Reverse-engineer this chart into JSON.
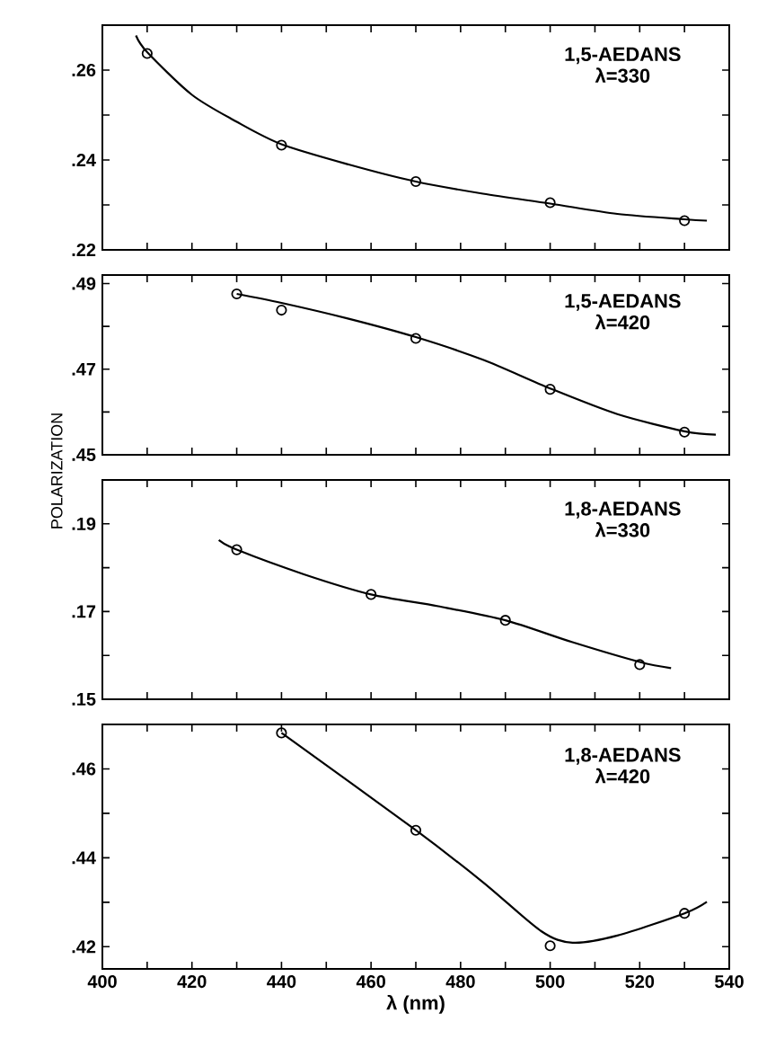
{
  "chart_data": [
    {
      "type": "scatter",
      "marker": "circle",
      "tick_labels": "y",
      "annotations": [
        "1,5-AEDANS",
        "λ=330"
      ],
      "xlim": [
        400,
        540
      ],
      "xticks": [
        400,
        {
          "value": 410,
          "label": null
        },
        420,
        {
          "value": 430,
          "label": null
        },
        440,
        {
          "value": 450,
          "label": null
        },
        460,
        {
          "value": 470,
          "label": null
        },
        480,
        {
          "value": 490,
          "label": null
        },
        500,
        {
          "value": 510,
          "label": null
        },
        520,
        {
          "value": 530,
          "label": null
        },
        540
      ],
      "ylim": [
        0.22,
        0.27
      ],
      "yticks": [
        {
          "value": 0.22,
          "label": ".22"
        },
        {
          "value": 0.23,
          "label": null
        },
        {
          "value": 0.24,
          "label": ".24"
        },
        {
          "value": 0.25,
          "label": null
        },
        {
          "value": 0.26,
          "label": ".26"
        }
      ],
      "series": [
        {
          "color": "#000000",
          "x": [
            410,
            440,
            470,
            500,
            530
          ],
          "values": [
            0.2637,
            0.2433,
            0.2352,
            0.2305,
            0.2265
          ]
        },
        {
          "type": "line",
          "marker": "none",
          "color": "#000000",
          "x": [
            407.5,
            410,
            420,
            430,
            440,
            455,
            470,
            485,
            500,
            515,
            530,
            535
          ],
          "values": [
            0.2677,
            0.264,
            0.2545,
            0.2485,
            0.2435,
            0.239,
            0.2352,
            0.2325,
            0.2303,
            0.228,
            0.2268,
            0.2265
          ]
        }
      ]
    },
    {
      "type": "scatter",
      "marker": "circle",
      "tick_labels": "y",
      "ylabel": "POLARIZATION",
      "annotations": [
        "1,5-AEDANS",
        "λ=420"
      ],
      "xlim": [
        400,
        540
      ],
      "xticks": [
        400,
        {
          "value": 410,
          "label": null
        },
        420,
        {
          "value": 430,
          "label": null
        },
        440,
        {
          "value": 450,
          "label": null
        },
        460,
        {
          "value": 470,
          "label": null
        },
        480,
        {
          "value": 490,
          "label": null
        },
        500,
        {
          "value": 510,
          "label": null
        },
        520,
        {
          "value": 530,
          "label": null
        },
        540
      ],
      "ylim": [
        0.45,
        0.492
      ],
      "yticks": [
        {
          "value": 0.45,
          "label": ".45"
        },
        {
          "value": 0.46,
          "label": null
        },
        {
          "value": 0.47,
          "label": ".47"
        },
        {
          "value": 0.48,
          "label": null
        },
        {
          "value": 0.49,
          "label": ".49"
        }
      ],
      "series": [
        {
          "color": "#000000",
          "x": [
            430,
            440,
            470,
            500,
            530
          ],
          "values": [
            0.4876,
            0.4838,
            0.4772,
            0.4653,
            0.4553
          ]
        },
        {
          "type": "line",
          "marker": "none",
          "color": "#000000",
          "x": [
            430,
            440,
            455,
            470,
            485,
            500,
            515,
            530,
            537
          ],
          "values": [
            0.4876,
            0.4855,
            0.4818,
            0.4775,
            0.4722,
            0.4655,
            0.4595,
            0.4555,
            0.4547
          ]
        }
      ]
    },
    {
      "type": "scatter",
      "marker": "circle",
      "tick_labels": "y",
      "annotations": [
        "1,8-AEDANS",
        "λ=330"
      ],
      "xlim": [
        400,
        540
      ],
      "xticks": [
        400,
        {
          "value": 410,
          "label": null
        },
        420,
        {
          "value": 430,
          "label": null
        },
        440,
        {
          "value": 450,
          "label": null
        },
        460,
        {
          "value": 470,
          "label": null
        },
        480,
        {
          "value": 490,
          "label": null
        },
        500,
        {
          "value": 510,
          "label": null
        },
        520,
        {
          "value": 530,
          "label": null
        },
        540
      ],
      "ylim": [
        0.15,
        0.2
      ],
      "yticks": [
        {
          "value": 0.15,
          "label": ".15"
        },
        {
          "value": 0.16,
          "label": null
        },
        {
          "value": 0.17,
          "label": ".17"
        },
        {
          "value": 0.18,
          "label": null
        },
        {
          "value": 0.19,
          "label": ".19"
        }
      ],
      "series": [
        {
          "color": "#000000",
          "x": [
            430,
            460,
            490,
            520
          ],
          "values": [
            0.1841,
            0.1739,
            0.168,
            0.1579
          ]
        },
        {
          "type": "line",
          "marker": "none",
          "color": "#000000",
          "x": [
            426,
            430,
            445,
            460,
            475,
            490,
            505,
            520,
            527
          ],
          "values": [
            0.1863,
            0.1841,
            0.1785,
            0.1739,
            0.1712,
            0.168,
            0.163,
            0.1585,
            0.1571
          ]
        }
      ]
    },
    {
      "type": "scatter",
      "marker": "circle",
      "xlabel": "λ (nm)",
      "annotations": [
        "1,8-AEDANS",
        "λ=420"
      ],
      "xlim": [
        400,
        540
      ],
      "xticks": [
        400,
        {
          "value": 410,
          "label": null
        },
        420,
        {
          "value": 430,
          "label": null
        },
        440,
        {
          "value": 450,
          "label": null
        },
        460,
        {
          "value": 470,
          "label": null
        },
        480,
        {
          "value": 490,
          "label": null
        },
        500,
        {
          "value": 510,
          "label": null
        },
        520,
        {
          "value": 530,
          "label": null
        },
        540
      ],
      "ylim": [
        0.415,
        0.47
      ],
      "yticks": [
        {
          "value": 0.42,
          "label": ".42"
        },
        {
          "value": 0.43,
          "label": null
        },
        {
          "value": 0.44,
          "label": ".44"
        },
        {
          "value": 0.45,
          "label": null
        },
        {
          "value": 0.46,
          "label": ".46"
        }
      ],
      "series": [
        {
          "color": "#000000",
          "x": [
            440,
            470,
            500,
            530
          ],
          "values": [
            0.4681,
            0.4462,
            0.4202,
            0.4275
          ]
        },
        {
          "type": "line",
          "marker": "none",
          "color": "#000000",
          "x": [
            440,
            470,
            485,
            498,
            505,
            515,
            530,
            535
          ],
          "values": [
            0.4681,
            0.4462,
            0.4345,
            0.4235,
            0.4209,
            0.4225,
            0.4275,
            0.4301
          ]
        }
      ]
    }
  ]
}
